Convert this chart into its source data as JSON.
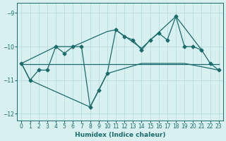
{
  "xlabel": "Humidex (Indice chaleur)",
  "bg_color": "#d8f0f0",
  "grid_color": "#b0d8d8",
  "line_color": "#1a6b6b",
  "xlim": [
    -0.5,
    23.5
  ],
  "ylim": [
    -12.2,
    -8.7
  ],
  "yticks": [
    -12,
    -11,
    -10,
    -9
  ],
  "xticks": [
    0,
    1,
    2,
    3,
    4,
    5,
    6,
    7,
    8,
    9,
    10,
    11,
    12,
    13,
    14,
    15,
    16,
    17,
    18,
    19,
    20,
    21,
    22,
    23
  ],
  "main_x": [
    0,
    1,
    2,
    3,
    4,
    5,
    6,
    7,
    8,
    9,
    10,
    11,
    12,
    13,
    14,
    15,
    16,
    17,
    18,
    19,
    20,
    21,
    22,
    23
  ],
  "main_y": [
    -10.5,
    -11.0,
    -10.7,
    -10.7,
    -10.0,
    -10.2,
    -10.0,
    -10.0,
    -11.8,
    -11.3,
    -10.8,
    -9.5,
    -9.7,
    -9.8,
    -10.1,
    -9.8,
    -9.6,
    -9.8,
    -9.1,
    -10.0,
    -10.0,
    -10.1,
    -10.5,
    -10.7
  ],
  "upper_x": [
    0,
    4,
    6,
    10,
    11,
    14,
    18,
    21
  ],
  "upper_y": [
    -10.5,
    -10.0,
    -10.0,
    -9.55,
    -9.5,
    -10.05,
    -9.1,
    -10.1
  ],
  "lower_x": [
    0,
    1,
    8,
    9,
    10,
    14,
    19,
    23
  ],
  "lower_y": [
    -10.5,
    -11.0,
    -11.8,
    -11.3,
    -10.8,
    -10.5,
    -10.5,
    -10.7
  ],
  "trend_x": [
    0,
    23
  ],
  "trend_y": [
    -10.52,
    -10.52
  ]
}
